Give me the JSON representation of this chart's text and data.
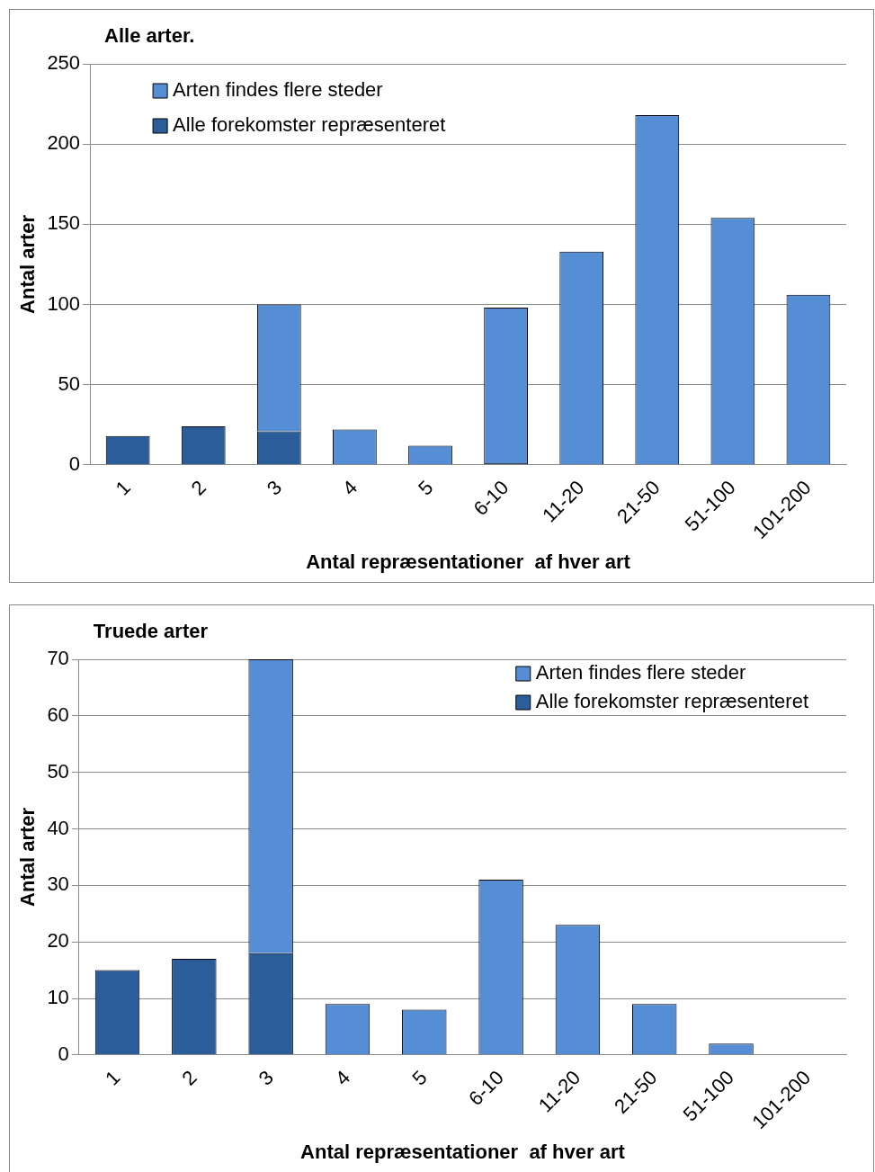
{
  "chart_data": [
    {
      "type": "bar",
      "title": "Alle arter.",
      "xlabel": "Antal repræsentationer  af hver art",
      "ylabel": "Antal arter",
      "categories": [
        "1",
        "2",
        "3",
        "4",
        "5",
        "6-10",
        "11-20",
        "21-50",
        "51-100",
        "101-200"
      ],
      "stacked": true,
      "series": [
        {
          "name": "Alle forekomster repræsenteret",
          "color": "#2a5d9a",
          "values": [
            18,
            24,
            21,
            0,
            0,
            1,
            0,
            0,
            0,
            0
          ]
        },
        {
          "name": "Arten findes flere steder",
          "color": "#558ed5",
          "values": [
            0,
            0,
            79,
            22,
            12,
            97,
            133,
            218,
            154,
            106
          ]
        }
      ],
      "ylim": [
        0,
        250
      ],
      "yticks": [
        0,
        50,
        100,
        150,
        200,
        250
      ],
      "grid": "y",
      "legend": "top left"
    },
    {
      "type": "bar",
      "title": "Truede arter",
      "xlabel": "Antal repræsentationer  af hver art",
      "ylabel": "Antal arter",
      "categories": [
        "1",
        "2",
        "3",
        "4",
        "5",
        "6-10",
        "11-20",
        "21-50",
        "51-100",
        "101-200"
      ],
      "stacked": true,
      "series": [
        {
          "name": "Alle forekomster repræsenteret",
          "color": "#2a5d9a",
          "values": [
            15,
            17,
            18,
            0,
            0,
            0,
            0,
            0,
            0,
            0
          ]
        },
        {
          "name": "Arten findes flere steder",
          "color": "#558ed5",
          "values": [
            0,
            0,
            52,
            9,
            8,
            31,
            23,
            9,
            2,
            0
          ]
        }
      ],
      "ylim": [
        0,
        70
      ],
      "yticks": [
        0,
        10,
        20,
        30,
        40,
        50,
        60,
        70
      ],
      "grid": "y",
      "legend": "top right"
    }
  ]
}
